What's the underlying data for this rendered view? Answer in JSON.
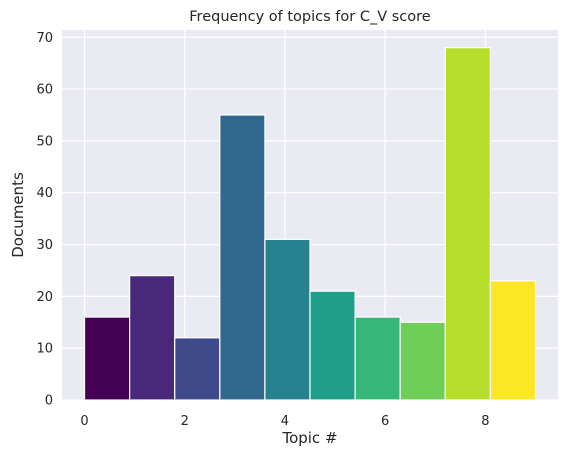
{
  "chart_data": {
    "type": "bar",
    "title": "Frequency of topics for C_V score",
    "xlabel": "Topic #",
    "ylabel": "Documents",
    "bin_edges": [
      0,
      0.9,
      1.8,
      2.7,
      3.6,
      4.5,
      5.4,
      6.3,
      7.2,
      8.1,
      9.0
    ],
    "values": [
      16,
      24,
      12,
      55,
      31,
      21,
      16,
      15,
      68,
      23
    ],
    "colors": [
      "#440154",
      "#482878",
      "#3e4a89",
      "#31688e",
      "#26828e",
      "#1f9e89",
      "#35b779",
      "#6ece58",
      "#b5de2b",
      "#fde725"
    ],
    "xlim": [
      -0.45,
      9.45
    ],
    "ylim": [
      0,
      71.4
    ],
    "xticks": [
      0,
      2,
      4,
      6,
      8
    ],
    "yticks": [
      0,
      10,
      20,
      30,
      40,
      50,
      60,
      70
    ],
    "grid": true,
    "background": "#eaeaf2",
    "grid_color": "#ffffff",
    "edge_color": "#ffffff"
  }
}
